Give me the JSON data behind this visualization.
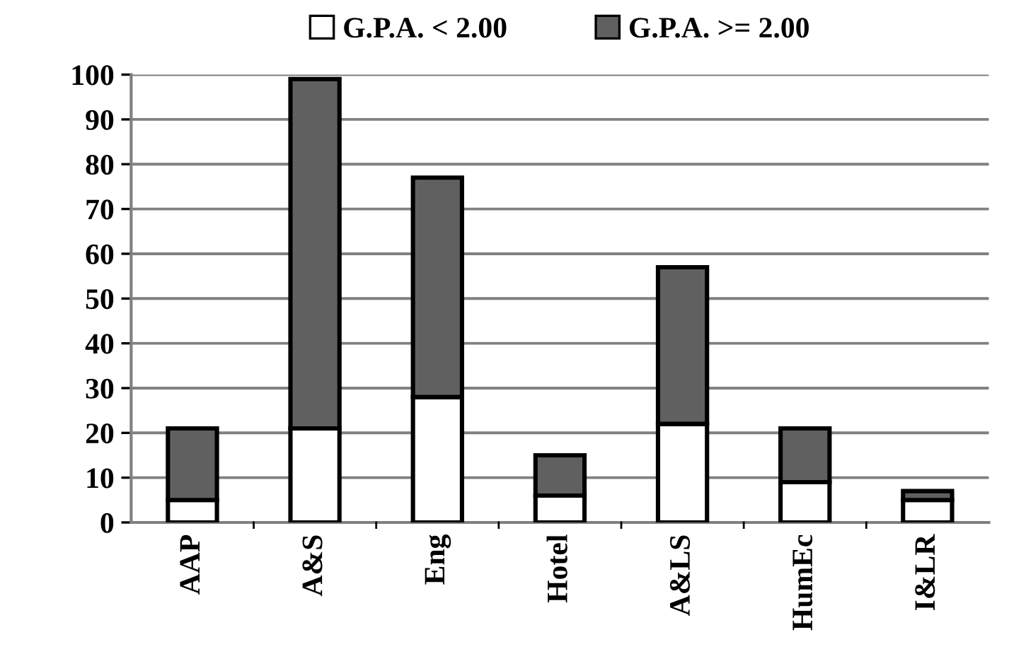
{
  "chart_data": {
    "type": "bar",
    "stacked": true,
    "categories": [
      "AAP",
      "A&S",
      "Eng",
      "Hotel",
      "A&LS",
      "HumEc",
      "I&LR"
    ],
    "series": [
      {
        "name": "G.P.A. < 2.00",
        "color": "#ffffff",
        "values": [
          5,
          21,
          28,
          6,
          22,
          9,
          5
        ]
      },
      {
        "name": "G.P.A. >= 2.00",
        "color": "#606060",
        "values": [
          16,
          78,
          49,
          9,
          35,
          12,
          2
        ]
      }
    ],
    "ylim": [
      0,
      100
    ],
    "yticks": [
      0,
      10,
      20,
      30,
      40,
      50,
      60,
      70,
      80,
      90,
      100
    ],
    "grid": "y",
    "legend": "top"
  }
}
